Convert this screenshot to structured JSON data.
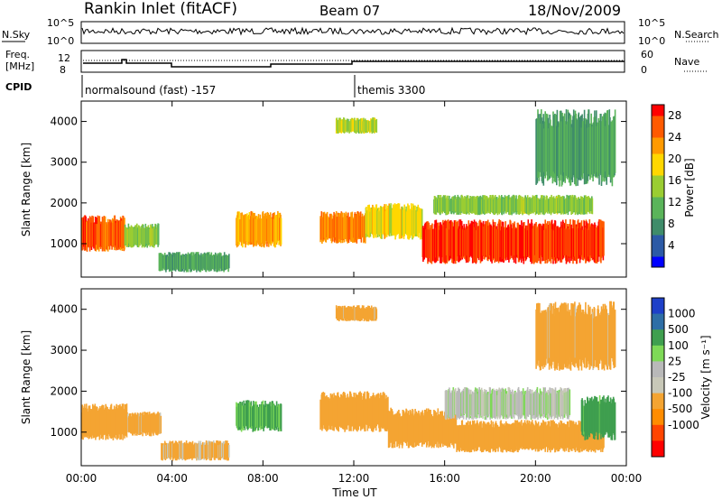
{
  "header": {
    "station": "Rankin Inlet (fitACF)",
    "beam": "Beam 07",
    "date": "18/Nov/2009"
  },
  "noise_panel": {
    "left_label": "N.Sky",
    "right_label": "N.Search",
    "left_ticks": [
      "10^5",
      "10^0"
    ],
    "right_ticks": [
      "10^5",
      "10^0"
    ]
  },
  "freq_panel": {
    "left_label_top": "Freq.",
    "left_label_bottom": "[MHz]",
    "right_label": "Nave",
    "left_ticks": [
      "12",
      "8"
    ],
    "right_ticks": [
      "60",
      "0"
    ]
  },
  "cpid": {
    "label": "CPID",
    "segments": [
      {
        "name": "normalsound (fast) -157",
        "start_hour": 0
      },
      {
        "name": "themis 3300",
        "start_hour": 12
      }
    ]
  },
  "colors": {
    "power_scale": [
      "#0000ff",
      "#2c5aa6",
      "#3f8c6a",
      "#5ab45a",
      "#9acd32",
      "#ffd700",
      "#ff9a00",
      "#ff5a00",
      "#ff0000"
    ],
    "velocity_scale": [
      "#ff0000",
      "#ff4500",
      "#ff8c00",
      "#f4a432",
      "#c8c8b8",
      "#b9b9b9",
      "#7ed957",
      "#3f9f4f",
      "#2e6ea6",
      "#1e40c8"
    ]
  },
  "chart_data": [
    {
      "type": "heatmap",
      "name": "power",
      "ylabel": "Slant Range [km]",
      "ylim": [
        180,
        4500
      ],
      "y_ticks": [
        "1000",
        "2000",
        "3000",
        "4000"
      ],
      "y_tick_values": [
        1000,
        2000,
        3000,
        4000
      ],
      "x_ticks": [
        "00:00",
        "04:00",
        "08:00",
        "12:00",
        "16:00",
        "20:00",
        "00:00"
      ],
      "x_tick_hours": [
        0,
        4,
        8,
        12,
        16,
        20,
        24
      ],
      "colorbar_label": "Power [dB]",
      "colorbar_ticks": [
        "4",
        "8",
        "12",
        "16",
        "20",
        "24",
        "28"
      ],
      "colorbar_range": [
        0,
        30
      ],
      "colorbar_tick_values": [
        4,
        8,
        12,
        16,
        20,
        24,
        28
      ],
      "regions": [
        {
          "t0": 0.0,
          "t1": 1.9,
          "r0": 800,
          "r1": 1700,
          "value": 26
        },
        {
          "t0": 1.9,
          "t1": 3.4,
          "r0": 900,
          "r1": 1500,
          "value": 14
        },
        {
          "t0": 3.4,
          "t1": 6.5,
          "r0": 300,
          "r1": 800,
          "value": 10
        },
        {
          "t0": 6.8,
          "t1": 8.8,
          "r0": 900,
          "r1": 1800,
          "value": 22
        },
        {
          "t0": 10.5,
          "t1": 12.5,
          "r0": 1000,
          "r1": 1800,
          "value": 24
        },
        {
          "t0": 12.5,
          "t1": 15.0,
          "r0": 1100,
          "r1": 2000,
          "value": 18
        },
        {
          "t0": 15.0,
          "t1": 23.0,
          "r0": 500,
          "r1": 1600,
          "value": 28
        },
        {
          "t0": 15.5,
          "t1": 22.5,
          "r0": 1700,
          "r1": 2200,
          "value": 14
        },
        {
          "t0": 11.2,
          "t1": 13.0,
          "r0": 3700,
          "r1": 4100,
          "value": 16
        },
        {
          "t0": 20.0,
          "t1": 23.5,
          "r0": 2400,
          "r1": 4300,
          "value": 10
        }
      ]
    },
    {
      "type": "heatmap",
      "name": "velocity",
      "ylabel": "Slant Range [km]",
      "ylim": [
        180,
        4500
      ],
      "y_ticks": [
        "1000",
        "2000",
        "3000",
        "4000"
      ],
      "y_tick_values": [
        1000,
        2000,
        3000,
        4000
      ],
      "x_ticks": [
        "00:00",
        "04:00",
        "08:00",
        "12:00",
        "16:00",
        "20:00",
        "00:00"
      ],
      "x_tick_hours": [
        0,
        4,
        8,
        12,
        16,
        20,
        24
      ],
      "xlabel": "Time UT",
      "colorbar_label": "Velocity [m s⁻¹]",
      "colorbar_ticks": [
        "1000",
        "500",
        "100",
        "25",
        "-25",
        "-100",
        "-500",
        "-1000"
      ],
      "regions": [
        {
          "t0": 0.0,
          "t1": 2.0,
          "r0": 800,
          "r1": 1700,
          "value": -300
        },
        {
          "t0": 2.0,
          "t1": 3.5,
          "r0": 900,
          "r1": 1500,
          "value": -150
        },
        {
          "t0": 3.5,
          "t1": 6.5,
          "r0": 300,
          "r1": 800,
          "value": -120
        },
        {
          "t0": 6.8,
          "t1": 8.8,
          "r0": 1000,
          "r1": 1800,
          "value": 120
        },
        {
          "t0": 10.5,
          "t1": 13.5,
          "r0": 1000,
          "r1": 2000,
          "value": -300
        },
        {
          "t0": 13.5,
          "t1": 16.5,
          "r0": 600,
          "r1": 1600,
          "value": -200
        },
        {
          "t0": 16.0,
          "t1": 21.5,
          "r0": 1300,
          "r1": 2100,
          "value": 0
        },
        {
          "t0": 16.5,
          "t1": 23.0,
          "r0": 500,
          "r1": 1300,
          "value": -250
        },
        {
          "t0": 22.0,
          "t1": 23.5,
          "r0": 800,
          "r1": 1900,
          "value": 150
        },
        {
          "t0": 11.2,
          "t1": 13.0,
          "r0": 3700,
          "r1": 4100,
          "value": -150
        },
        {
          "t0": 20.0,
          "t1": 23.5,
          "r0": 2500,
          "r1": 4200,
          "value": -150
        }
      ]
    }
  ]
}
